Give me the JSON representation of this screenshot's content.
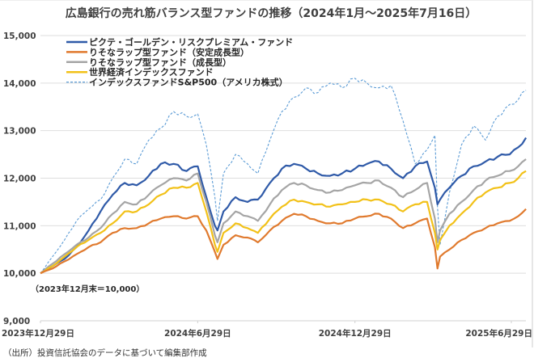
{
  "chart_data": {
    "type": "line",
    "title": "広島銀行の売れ筋バランス型ファンドの推移（2024年1月～2025年7月16日）",
    "ylim": [
      9000,
      15000
    ],
    "yticks": [
      "9,000",
      "10,000",
      "11,000",
      "12,000",
      "13,000",
      "14,000",
      "15,000"
    ],
    "ytick_values": [
      9000,
      10000,
      11000,
      12000,
      13000,
      14000,
      15000
    ],
    "xlim_days": [
      0,
      565
    ],
    "xticks": [
      {
        "label": "2023年12月29日",
        "day": 0
      },
      {
        "label": "2024年6月29日",
        "day": 183
      },
      {
        "label": "2024年12月29日",
        "day": 366
      },
      {
        "label": "2025年6月29日",
        "day": 548
      }
    ],
    "grid": true,
    "legend_position": "top-left",
    "annotation": "（2023年12月末＝10,000）",
    "series": [
      {
        "name": "ピクテ・ゴールデン・リスクプレミアム・ファンド",
        "color": "#2f5aa8",
        "dashed": false,
        "days": [
          0,
          14,
          28,
          42,
          56,
          70,
          84,
          98,
          112,
          126,
          140,
          155,
          170,
          183,
          193,
          203,
          206,
          213,
          227,
          241,
          253,
          267,
          281,
          295,
          309,
          323,
          337,
          351,
          366,
          380,
          394,
          408,
          422,
          436,
          450,
          459,
          462,
          465,
          476,
          490,
          504,
          518,
          532,
          546,
          556,
          565
        ],
        "values": [
          10000,
          10150,
          10300,
          10550,
          10900,
          11300,
          11650,
          11900,
          11850,
          12050,
          12300,
          12300,
          12150,
          12250,
          11600,
          11000,
          10900,
          11300,
          11600,
          11500,
          11550,
          11900,
          12200,
          12300,
          12200,
          12100,
          12050,
          12100,
          12200,
          12300,
          12350,
          12200,
          12000,
          12250,
          12350,
          11800,
          11450,
          11550,
          11800,
          12050,
          12250,
          12350,
          12450,
          12500,
          12650,
          12850
        ]
      },
      {
        "name": "りそなラップ型ファンド（安定成長型）",
        "color": "#e07a2e",
        "dashed": false,
        "days": [
          0,
          14,
          28,
          42,
          56,
          70,
          84,
          98,
          112,
          126,
          140,
          155,
          170,
          183,
          193,
          203,
          206,
          213,
          227,
          241,
          253,
          267,
          281,
          295,
          309,
          323,
          337,
          351,
          366,
          380,
          394,
          408,
          422,
          436,
          450,
          459,
          462,
          465,
          476,
          490,
          504,
          518,
          532,
          546,
          556,
          565
        ],
        "values": [
          10000,
          10100,
          10250,
          10400,
          10550,
          10650,
          10850,
          10950,
          10950,
          11050,
          11150,
          11200,
          11150,
          11200,
          10900,
          10450,
          10300,
          10600,
          10800,
          10750,
          10650,
          10900,
          11100,
          11250,
          11200,
          11100,
          11050,
          11050,
          11150,
          11200,
          11250,
          11150,
          10950,
          11050,
          11150,
          10550,
          10100,
          10350,
          10500,
          10700,
          10850,
          10950,
          11050,
          11100,
          11200,
          11350
        ]
      },
      {
        "name": "りそなラップ型ファンド（成長型）",
        "color": "#a5a5a5",
        "dashed": false,
        "days": [
          0,
          14,
          28,
          42,
          56,
          70,
          84,
          98,
          112,
          126,
          140,
          155,
          170,
          183,
          193,
          203,
          206,
          213,
          227,
          241,
          253,
          267,
          281,
          295,
          309,
          323,
          337,
          351,
          366,
          380,
          394,
          408,
          422,
          436,
          450,
          459,
          462,
          465,
          476,
          490,
          504,
          518,
          532,
          546,
          556,
          565
        ],
        "values": [
          10000,
          10200,
          10400,
          10600,
          10750,
          10950,
          11250,
          11500,
          11450,
          11650,
          11850,
          12000,
          11950,
          12100,
          11500,
          10800,
          10650,
          11050,
          11300,
          11200,
          11100,
          11450,
          11750,
          11900,
          11850,
          11750,
          11700,
          11750,
          11850,
          11900,
          11950,
          11800,
          11600,
          11750,
          11900,
          11150,
          10650,
          10900,
          11250,
          11500,
          11750,
          11950,
          12050,
          12150,
          12250,
          12400
        ]
      },
      {
        "name": "世界経済インデックスファンド",
        "color": "#f2c118",
        "dashed": false,
        "days": [
          0,
          14,
          28,
          42,
          56,
          70,
          84,
          98,
          112,
          126,
          140,
          155,
          170,
          183,
          193,
          203,
          206,
          213,
          227,
          241,
          253,
          267,
          281,
          295,
          309,
          323,
          337,
          351,
          366,
          380,
          394,
          408,
          422,
          436,
          450,
          459,
          462,
          465,
          476,
          490,
          504,
          518,
          532,
          546,
          556,
          565
        ],
        "values": [
          10000,
          10150,
          10350,
          10550,
          10700,
          10850,
          11050,
          11300,
          11300,
          11450,
          11650,
          11800,
          11800,
          11900,
          11300,
          10600,
          10450,
          10850,
          11050,
          10950,
          10850,
          11150,
          11400,
          11550,
          11500,
          11450,
          11400,
          11450,
          11500,
          11550,
          11550,
          11450,
          11300,
          11450,
          11500,
          10850,
          10500,
          10700,
          11000,
          11250,
          11500,
          11700,
          11800,
          11900,
          12000,
          12150
        ]
      },
      {
        "name": "インデックスファンドS&P500（アメリカ株式）",
        "color": "#5b9bd5",
        "dashed": true,
        "days": [
          0,
          14,
          28,
          42,
          56,
          70,
          84,
          98,
          112,
          126,
          140,
          155,
          170,
          183,
          193,
          203,
          206,
          213,
          227,
          241,
          253,
          267,
          281,
          295,
          309,
          323,
          337,
          351,
          366,
          380,
          394,
          408,
          422,
          436,
          450,
          459,
          462,
          465,
          476,
          490,
          504,
          518,
          532,
          546,
          556,
          565
        ],
        "values": [
          10000,
          10350,
          10700,
          11100,
          11350,
          11550,
          12000,
          12400,
          12300,
          12800,
          13050,
          13400,
          13300,
          13350,
          12700,
          11600,
          11100,
          12100,
          12500,
          12300,
          12100,
          12800,
          13400,
          13700,
          13900,
          13800,
          14000,
          13900,
          14100,
          14000,
          13900,
          13950,
          13200,
          12300,
          12600,
          12900,
          11400,
          10600,
          11700,
          12700,
          13100,
          12800,
          13300,
          13550,
          13650,
          13850
        ]
      }
    ]
  },
  "footer": {
    "source": "（出所）投資信託協会のデータに基づいて編集部作成"
  }
}
